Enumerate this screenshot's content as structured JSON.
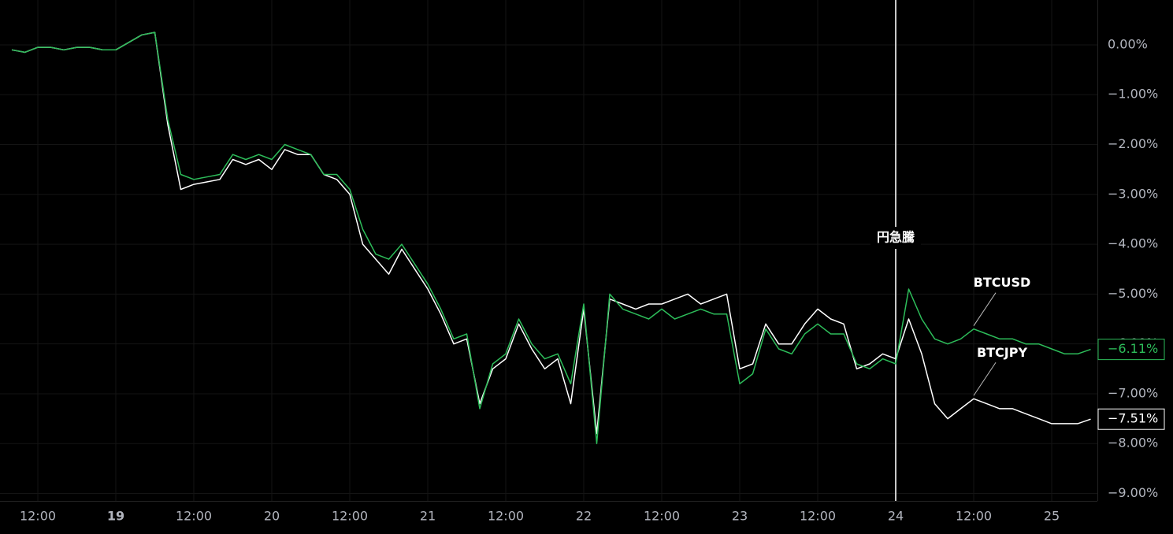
{
  "chart_data": {
    "type": "line",
    "categories": [
      null,
      null,
      "12:00",
      null,
      null,
      null,
      null,
      null,
      "19",
      null,
      null,
      null,
      null,
      null,
      "12:00",
      null,
      null,
      null,
      null,
      null,
      "20",
      null,
      null,
      null,
      null,
      null,
      "12:00",
      null,
      null,
      null,
      null,
      null,
      "21",
      null,
      null,
      null,
      null,
      null,
      "12:00",
      null,
      null,
      null,
      null,
      null,
      "22",
      null,
      null,
      null,
      null,
      null,
      "12:00",
      null,
      null,
      null,
      null,
      null,
      "23",
      null,
      null,
      null,
      null,
      null,
      "12:00",
      null,
      null,
      null,
      null,
      null,
      "24",
      null,
      null,
      null,
      null,
      null,
      "12:00",
      null,
      null,
      null,
      null,
      null,
      "25",
      null,
      null,
      null
    ],
    "series": [
      {
        "name": "BTCUSD",
        "color": "#2dbd5a",
        "values": [
          -0.1,
          -0.15,
          -0.05,
          -0.05,
          -0.1,
          -0.05,
          -0.05,
          -0.1,
          -0.1,
          0.05,
          0.2,
          0.25,
          -1.5,
          -2.6,
          -2.7,
          -2.65,
          -2.6,
          -2.2,
          -2.3,
          -2.2,
          -2.3,
          -2.0,
          -2.1,
          -2.2,
          -2.6,
          -2.6,
          -2.9,
          -3.7,
          -4.2,
          -4.3,
          -4.0,
          -4.4,
          -4.8,
          -5.3,
          -5.9,
          -5.8,
          -7.3,
          -6.4,
          -6.2,
          -5.5,
          -6.0,
          -6.3,
          -6.2,
          -6.8,
          -5.2,
          -8.0,
          -5.0,
          -5.3,
          -5.4,
          -5.5,
          -5.3,
          -5.5,
          -5.4,
          -5.3,
          -5.4,
          -5.4,
          -6.8,
          -6.6,
          -5.7,
          -6.1,
          -6.2,
          -5.8,
          -5.6,
          -5.8,
          -5.8,
          -6.4,
          -6.5,
          -6.3,
          -6.4,
          -4.9,
          -5.5,
          -5.9,
          -6.0,
          -5.9,
          -5.7,
          -5.8,
          -5.9,
          -5.9,
          -6.0,
          -6.0,
          -6.1,
          -6.2,
          -6.2,
          -6.11
        ],
        "end_label": {
          "value": -6.11,
          "label": "−6.11%"
        }
      },
      {
        "name": "BTCJPY",
        "color": "#ffffff",
        "values": [
          -0.1,
          -0.15,
          -0.05,
          -0.05,
          -0.1,
          -0.05,
          -0.05,
          -0.1,
          -0.1,
          0.05,
          0.2,
          0.25,
          -1.6,
          -2.9,
          -2.8,
          -2.75,
          -2.7,
          -2.3,
          -2.4,
          -2.3,
          -2.5,
          -2.1,
          -2.2,
          -2.2,
          -2.6,
          -2.7,
          -3.0,
          -4.0,
          -4.3,
          -4.6,
          -4.1,
          -4.5,
          -4.9,
          -5.4,
          -6.0,
          -5.9,
          -7.2,
          -6.5,
          -6.3,
          -5.6,
          -6.1,
          -6.5,
          -6.3,
          -7.2,
          -5.3,
          -7.8,
          -5.1,
          -5.2,
          -5.3,
          -5.2,
          -5.2,
          -5.1,
          -5.0,
          -5.2,
          -5.1,
          -5.0,
          -6.5,
          -6.4,
          -5.6,
          -6.0,
          -6.0,
          -5.6,
          -5.3,
          -5.5,
          -5.6,
          -6.5,
          -6.4,
          -6.2,
          -6.3,
          -5.5,
          -6.2,
          -7.2,
          -7.5,
          -7.3,
          -7.1,
          -7.2,
          -7.3,
          -7.3,
          -7.4,
          -7.5,
          -7.6,
          -7.6,
          -7.6,
          -7.51
        ],
        "end_label": {
          "value": -7.51,
          "label": "−7.51%"
        }
      }
    ],
    "ylim": [
      -9.15,
      0.9
    ],
    "yticks": [
      {
        "value": 0,
        "label": "0.00%"
      },
      {
        "value": -1,
        "label": "−1.00%"
      },
      {
        "value": -2,
        "label": "−2.00%"
      },
      {
        "value": -3,
        "label": "−3.00%"
      },
      {
        "value": -4,
        "label": "−4.00%"
      },
      {
        "value": -5,
        "label": "−5.00%"
      },
      {
        "value": -6,
        "label": "−6.00%"
      },
      {
        "value": -7,
        "label": "−7.00%"
      },
      {
        "value": -8,
        "label": "−8.00%"
      },
      {
        "value": -9,
        "label": "−9.00%"
      }
    ],
    "grid": true,
    "annotations": [
      {
        "text": "円急騰",
        "x": "24"
      }
    ]
  }
}
